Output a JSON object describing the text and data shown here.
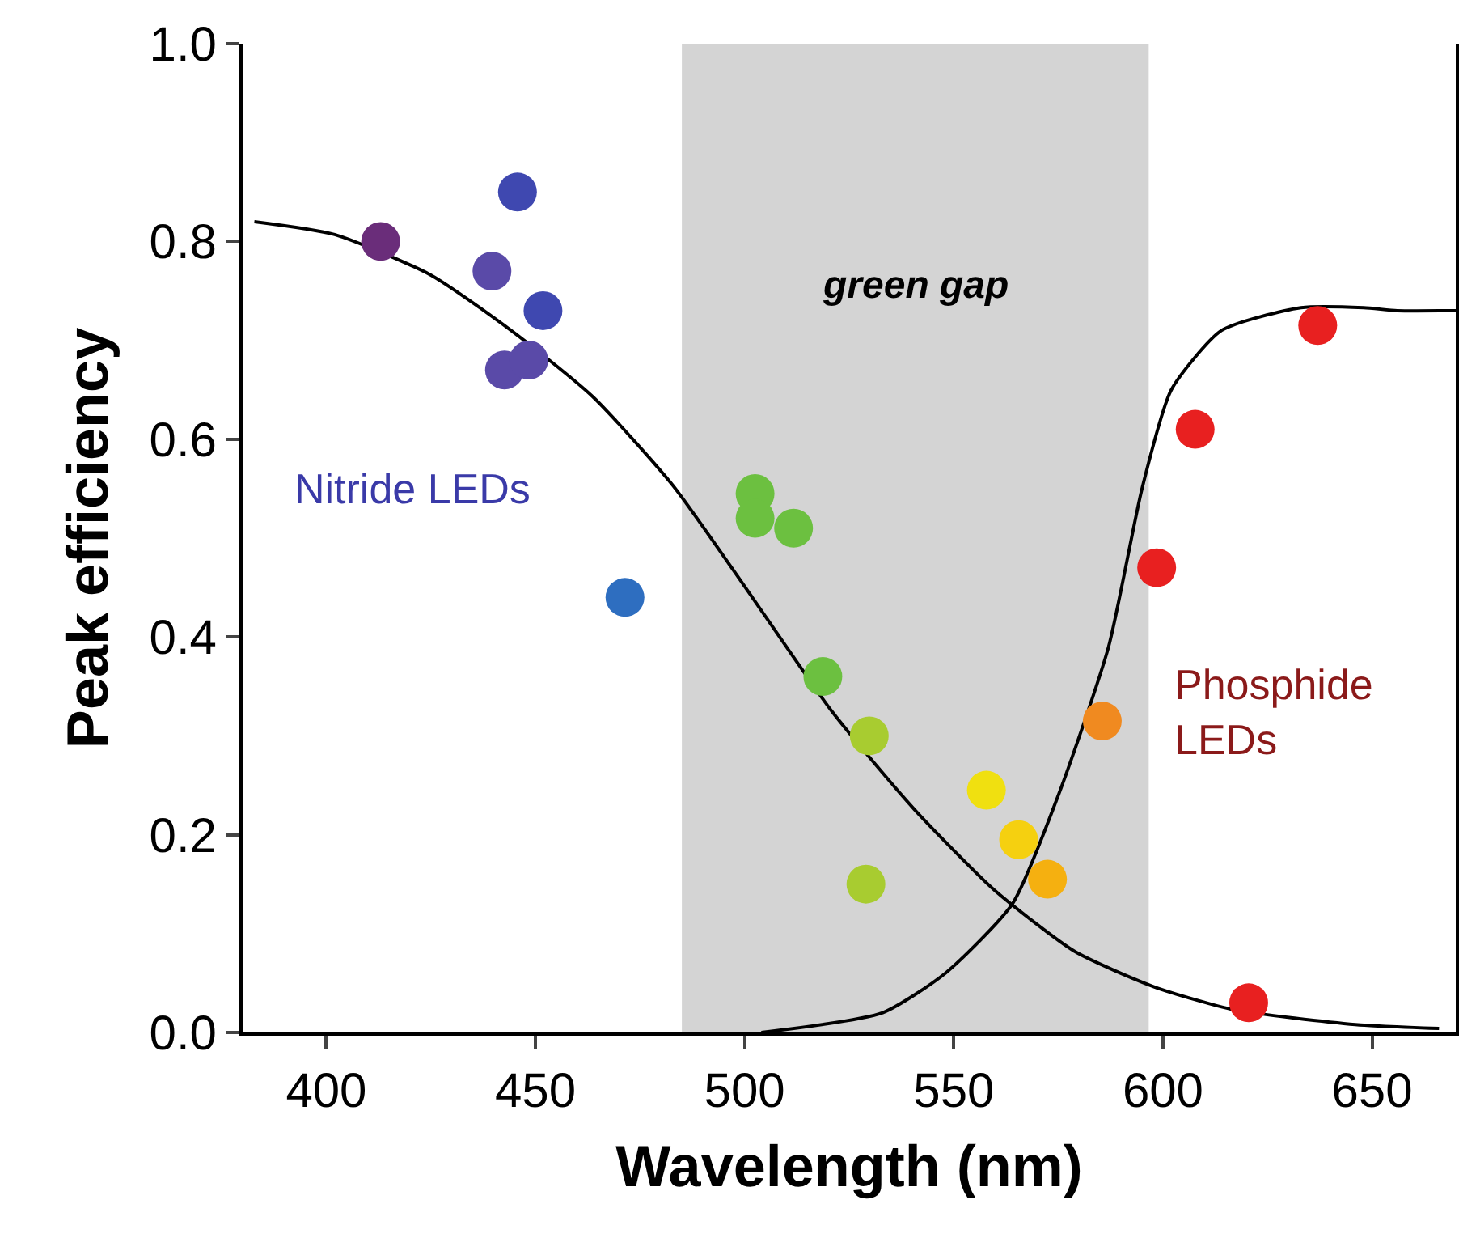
{
  "chart_data": {
    "type": "scatter",
    "xlabel": "Wavelength (nm)",
    "ylabel": "Peak efficiency",
    "xlim": [
      380,
      670
    ],
    "xticks": [
      400,
      450,
      500,
      550,
      600,
      650
    ],
    "ylim": [
      0,
      1
    ],
    "yticks": [
      {
        "value": 0,
        "label": "0.0"
      },
      {
        "value": 0.2,
        "label": "0.2"
      },
      {
        "value": 0.4,
        "label": "0.4"
      },
      {
        "value": 0.6,
        "label": "0.6"
      },
      {
        "value": 0.8,
        "label": "0.8"
      },
      {
        "value": 1,
        "label": "1.0"
      }
    ],
    "grid": false,
    "bands": [
      {
        "axis": "x",
        "from": 485,
        "to": 596.6,
        "label": "green gap",
        "color": "#d4d4d4"
      }
    ],
    "annotations": [
      "Nitride LEDs",
      "Phosphide LEDs"
    ],
    "series": [
      {
        "marker": "circle",
        "color": "#3a3aa8",
        "x": [
          413,
          445.7,
          439.6,
          451.8,
          442.6,
          448.4,
          471.4,
          502.5,
          502.5,
          511.7,
          518.7,
          529.8,
          529
        ],
        "values": [
          0.8,
          0.85,
          0.77,
          0.73,
          0.67,
          0.68,
          0.44,
          0.545,
          0.52,
          0.51,
          0.36,
          0.3,
          0.15
        ],
        "colors": [
          "#6a2d7a",
          "#3f48b0",
          "#5a4aa8",
          "#3f48b0",
          "#5a4aa8",
          "#5a4aa8",
          "#2e6ec0",
          "#6cc040",
          "#6cc040",
          "#6cc040",
          "#6cc040",
          "#a8cc30",
          "#a8cc30"
        ]
      },
      {
        "marker": "circle",
        "color": "#8b1a1a",
        "x": [
          557.8,
          565.5,
          572.4,
          585.5,
          598.5,
          607.7,
          637,
          620.5
        ],
        "values": [
          0.245,
          0.195,
          0.155,
          0.315,
          0.47,
          0.61,
          0.715,
          0.03
        ],
        "colors": [
          "#f0e010",
          "#f5d010",
          "#f5b010",
          "#f08a20",
          "#e82020",
          "#e82020",
          "#e82020",
          "#e82020"
        ]
      },
      {
        "type": "line",
        "marker": "none",
        "color": "#000000",
        "line_style": "solid",
        "x": [
          382.8,
          402,
          425,
          444.5,
          463.7,
          482.9,
          502,
          521,
          540.5,
          559.7,
          578.9,
          598,
          617,
          646,
          666
        ],
        "values": [
          0.82,
          0.807,
          0.766,
          0.709,
          0.643,
          0.553,
          0.439,
          0.324,
          0.226,
          0.144,
          0.082,
          0.046,
          0.023,
          0.008,
          0.004
        ]
      },
      {
        "type": "line",
        "marker": "none",
        "color": "#000000",
        "line_style": "solid",
        "x": [
          504,
          533,
          548,
          564,
          575,
          587,
          595,
          602,
          614,
          633,
          648,
          656,
          670
        ],
        "values": [
          0,
          0.02,
          0.06,
          0.13,
          0.24,
          0.39,
          0.55,
          0.65,
          0.71,
          0.733,
          0.733,
          0.73,
          0.73
        ]
      }
    ]
  }
}
